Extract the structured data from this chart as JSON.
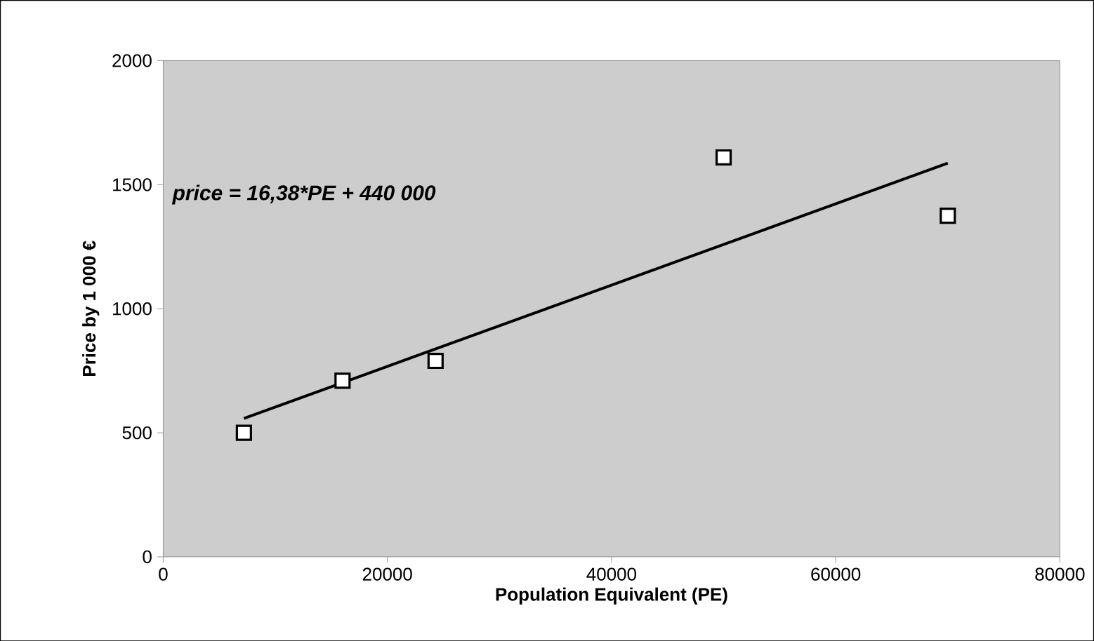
{
  "chart_data": {
    "type": "scatter",
    "xlabel": "Population Equivalent (PE)",
    "ylabel": "Price by 1 000 €",
    "xlim": [
      0,
      80000
    ],
    "xticks": [
      0,
      20000,
      40000,
      60000,
      80000
    ],
    "ylim": [
      0,
      2000
    ],
    "yticks": [
      0,
      500,
      1000,
      1500,
      2000
    ],
    "grid": false,
    "annotations": [
      "price = 16,38*PE + 440 000"
    ],
    "series": [
      {
        "color": "#000000",
        "marker": "square",
        "x": [
          7200,
          16000,
          24300,
          50000,
          70000
        ],
        "values": [
          500,
          710,
          790,
          1610,
          1375
        ]
      },
      {
        "type": "line",
        "marker": "none",
        "color": "#000000",
        "x": [
          7200,
          70000
        ],
        "values": [
          558,
          1587
        ]
      }
    ]
  }
}
